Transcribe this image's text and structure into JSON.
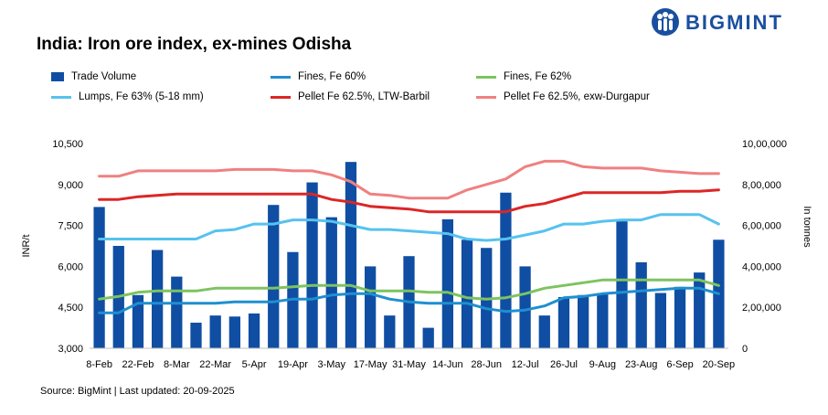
{
  "title": "India: Iron ore index, ex-mines Odisha",
  "brand": {
    "name": "BIGMINT",
    "color": "#1a4fa0"
  },
  "source": "Source: BigMint | Last updated: 20-09-2025",
  "chart_data": {
    "type": "bar+line",
    "ylabel": "INR/t",
    "y2label": "In tonnes",
    "ylim": [
      3000,
      10500
    ],
    "y2lim": [
      0,
      1000000
    ],
    "yticks": [
      "3,000",
      "4,500",
      "6,000",
      "7,500",
      "9,000",
      "10,500"
    ],
    "y2ticks": [
      "0",
      "2,00,000",
      "4,00,000",
      "6,00,000",
      "8,00,000",
      "10,00,000"
    ],
    "xticks": [
      "8-Feb",
      "22-Feb",
      "8-Mar",
      "22-Mar",
      "5-Apr",
      "19-Apr",
      "3-May",
      "17-May",
      "31-May",
      "14-Jun",
      "28-Jun",
      "12-Jul",
      "26-Jul",
      "9-Aug",
      "23-Aug",
      "6-Sep",
      "20-Sep"
    ],
    "legend_position": "top",
    "grid": false,
    "bars": {
      "name": "Trade Volume",
      "color": "#0f4ea3",
      "axis": "right",
      "values": [
        690000,
        500000,
        260000,
        480000,
        350000,
        125000,
        160000,
        155000,
        170000,
        700000,
        470000,
        810000,
        640000,
        910000,
        400000,
        160000,
        450000,
        100000,
        630000,
        530000,
        490000,
        760000,
        400000,
        160000,
        250000,
        260000,
        270000,
        620000,
        420000,
        270000,
        300000,
        370000,
        530000
      ]
    },
    "series": [
      {
        "name": "Fines, Fe 60%",
        "color": "#1f8fd0",
        "axis": "left",
        "values": [
          4300,
          4300,
          4650,
          4650,
          4650,
          4650,
          4650,
          4700,
          4700,
          4700,
          4800,
          4800,
          4950,
          5000,
          5000,
          4800,
          4700,
          4650,
          4650,
          4650,
          4450,
          4350,
          4400,
          4550,
          4850,
          4900,
          5000,
          5050,
          5100,
          5150,
          5200,
          5200,
          5000
        ]
      },
      {
        "name": "Fines, Fe 62%",
        "color": "#7dc361",
        "axis": "left",
        "values": [
          4800,
          4900,
          5050,
          5100,
          5100,
          5100,
          5200,
          5200,
          5200,
          5200,
          5250,
          5300,
          5300,
          5300,
          5100,
          5100,
          5100,
          5050,
          5050,
          4850,
          4800,
          4850,
          5000,
          5200,
          5300,
          5400,
          5500,
          5500,
          5500,
          5500,
          5500,
          5500,
          5300
        ]
      },
      {
        "name": "Lumps, Fe 63% (5-18 mm)",
        "color": "#57c2ef",
        "axis": "left",
        "values": [
          7000,
          7000,
          7000,
          7000,
          7000,
          7000,
          7300,
          7350,
          7550,
          7550,
          7700,
          7700,
          7650,
          7500,
          7350,
          7350,
          7300,
          7250,
          7200,
          7000,
          6950,
          7000,
          7150,
          7300,
          7550,
          7550,
          7650,
          7700,
          7700,
          7900,
          7900,
          7900,
          7550
        ]
      },
      {
        "name": "Pellet Fe 62.5%, LTW-Barbil",
        "color": "#dc2626",
        "axis": "left",
        "values": [
          8450,
          8450,
          8550,
          8600,
          8650,
          8650,
          8650,
          8650,
          8650,
          8650,
          8650,
          8650,
          8450,
          8350,
          8200,
          8150,
          8100,
          8000,
          8000,
          8000,
          8000,
          8000,
          8200,
          8300,
          8500,
          8700,
          8700,
          8700,
          8700,
          8700,
          8750,
          8750,
          8800
        ]
      },
      {
        "name": "Pellet Fe 62.5%, exw-Durgapur",
        "color": "#f08080",
        "axis": "left",
        "values": [
          9300,
          9300,
          9500,
          9500,
          9500,
          9500,
          9500,
          9550,
          9550,
          9550,
          9500,
          9500,
          9350,
          9100,
          8650,
          8600,
          8500,
          8500,
          8500,
          8800,
          9000,
          9200,
          9650,
          9850,
          9850,
          9650,
          9600,
          9600,
          9600,
          9500,
          9450,
          9400,
          9400
        ]
      }
    ]
  }
}
